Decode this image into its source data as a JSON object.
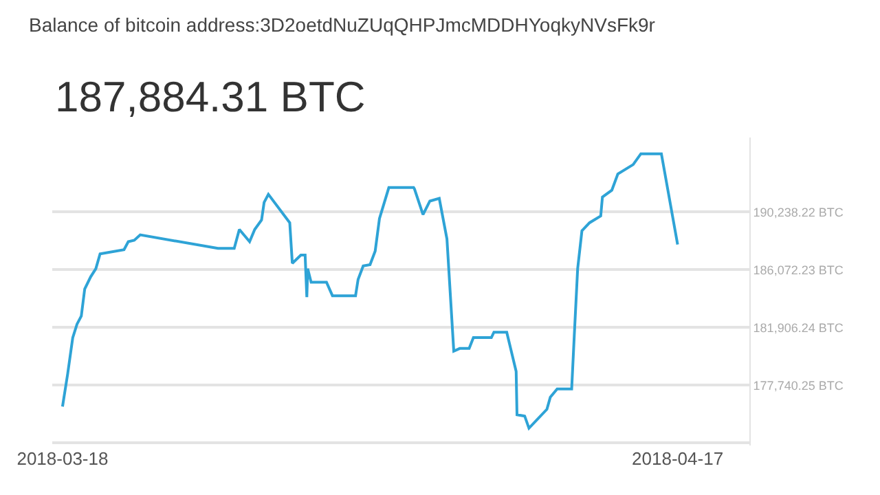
{
  "chart_data": {
    "type": "line",
    "title": "Balance of bitcoin address:3D2oetdNuZUqQHPJmcMDDHYoqkyNVsFk9r",
    "subtitle": "187,884.31 BTC",
    "x": [
      "2018-03-18T00:00",
      "2018-03-18T06:00",
      "2018-03-18T12:00",
      "2018-03-18T17:00",
      "2018-03-18T22:00",
      "2018-03-19T02:00",
      "2018-03-19T09:00",
      "2018-03-19T15:00",
      "2018-03-19T20:00",
      "2018-03-21T00:00",
      "2018-03-21T05:00",
      "2018-03-21T12:00",
      "2018-03-21T19:00",
      "2018-03-25T14:00",
      "2018-03-26T09:00",
      "2018-03-26T15:00",
      "2018-03-27T03:00",
      "2018-03-27T09:00",
      "2018-03-27T17:00",
      "2018-03-27T20:00",
      "2018-03-28T01:00",
      "2018-03-29T02:00",
      "2018-03-29T05:00",
      "2018-03-29T15:00",
      "2018-03-29T20:00",
      "2018-03-29T22:00",
      "2018-03-29T23:00",
      "2018-03-30T03:00",
      "2018-03-30T21:00",
      "2018-03-31T04:00",
      "2018-04-01T07:00",
      "2018-04-01T10:00",
      "2018-04-01T16:00",
      "2018-04-02T00:00",
      "2018-04-02T06:00",
      "2018-04-02T11:00",
      "2018-04-02T22:00",
      "2018-04-04T03:00",
      "2018-04-04T04:00",
      "2018-04-04T14:00",
      "2018-04-04T22:00",
      "2018-04-05T09:00",
      "2018-04-05T18:00",
      "2018-04-06T02:00",
      "2018-04-06T09:00",
      "2018-04-06T20:00",
      "2018-04-07T01:00",
      "2018-04-07T22:00",
      "2018-04-08T01:00",
      "2018-04-08T16:00",
      "2018-04-09T03:00",
      "2018-04-09T04:00",
      "2018-04-09T13:00",
      "2018-04-09T18:00",
      "2018-04-10T15:00",
      "2018-04-10T19:00",
      "2018-04-11T03:00",
      "2018-04-11T20:00",
      "2018-04-11T23:00",
      "2018-04-12T03:00",
      "2018-04-12T08:00",
      "2018-04-12T17:00",
      "2018-04-13T06:00",
      "2018-04-13T08:00",
      "2018-04-13T19:00",
      "2018-04-14T02:00",
      "2018-04-14T20:00",
      "2018-04-15T05:00",
      "2018-04-16T05:00",
      "2018-04-17T00:00"
    ],
    "series": [
      {
        "color": "#2ea3d6",
        "values": [
          176205,
          178544,
          181175,
          182150,
          182734,
          184683,
          185560,
          186145,
          187217,
          187509,
          188094,
          188192,
          188581,
          187607,
          187607,
          188971,
          188094,
          188971,
          189653,
          190920,
          191505,
          189458,
          186535,
          187120,
          187120,
          184099,
          186145,
          185171,
          185171,
          184196,
          184196,
          185365,
          186340,
          186437,
          187412,
          189751,
          191992,
          191992,
          191895,
          190043,
          191018,
          191213,
          188289,
          180201,
          180396,
          180396,
          181175,
          181175,
          181565,
          181565,
          178739,
          175620,
          175523,
          174646,
          176010,
          176887,
          177472,
          177472,
          181273,
          186145,
          188874,
          189458,
          189946,
          191310,
          191797,
          192967,
          193649,
          194428,
          194428,
          187884.31
        ]
      }
    ],
    "xlim": [
      "2018-03-17T12:00",
      "2018-04-20T12:00"
    ],
    "xticks": [
      {
        "value": "2018-03-18",
        "label": "2018-03-18"
      },
      {
        "value": "2018-04-17",
        "label": "2018-04-17"
      }
    ],
    "ylim": [
      173400,
      195600
    ],
    "yticks": [
      {
        "value": 173574.26,
        "label": null
      },
      {
        "value": 177740.25,
        "label": "177,740.25 BTC"
      },
      {
        "value": 181906.24,
        "label": "181,906.24 BTC"
      },
      {
        "value": 186072.23,
        "label": "186,072.23 BTC"
      },
      {
        "value": 190238.22,
        "label": "190,238.22 BTC"
      }
    ],
    "grid": "y",
    "marker": "none",
    "line_style": "solid"
  }
}
